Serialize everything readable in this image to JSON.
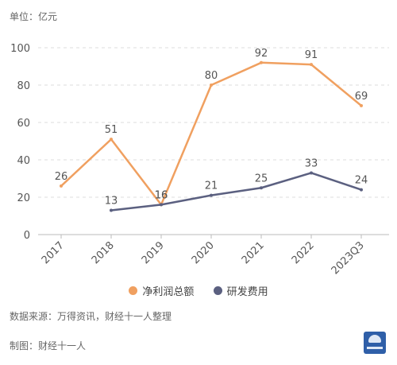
{
  "unit_label": "单位：亿元",
  "source_text": "数据来源：万得资讯，财经十一人整理",
  "credit_text": "制图：财经十一人",
  "chart_data": {
    "type": "line",
    "categories": [
      "2017",
      "2018",
      "2019",
      "2020",
      "2021",
      "2022",
      "2023Q3"
    ],
    "series": [
      {
        "name": "净利润总额",
        "color": "#f0a060",
        "values": [
          26,
          51,
          16,
          80,
          92,
          91,
          69
        ]
      },
      {
        "name": "研发费用",
        "color": "#5b6080",
        "values": [
          null,
          13,
          16,
          21,
          25,
          33,
          24
        ]
      }
    ],
    "yticks": [
      0,
      20,
      40,
      60,
      80,
      100
    ],
    "ylim": [
      0,
      100
    ],
    "grid": true,
    "legend": "bottom"
  }
}
